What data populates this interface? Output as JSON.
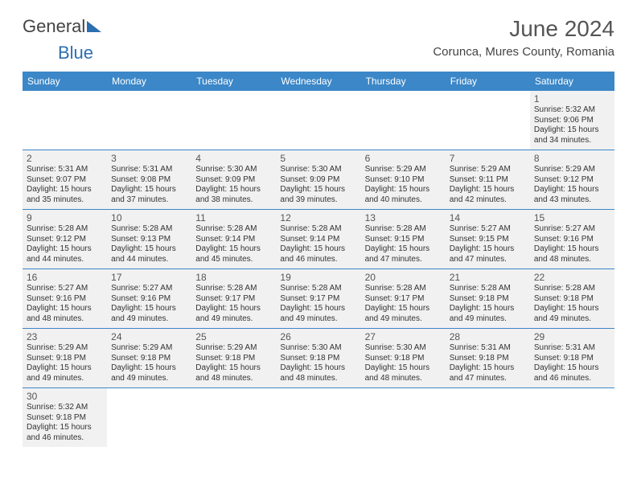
{
  "brand": {
    "part1": "General",
    "part2": "Blue"
  },
  "title": "June 2024",
  "location": "Corunca, Mures County, Romania",
  "colors": {
    "header_bg": "#3b87c8",
    "header_text": "#ffffff",
    "cell_bg": "#f1f1f1",
    "border": "#3b87c8",
    "brand_blue": "#2c6fb0",
    "text": "#333333"
  },
  "day_headers": [
    "Sunday",
    "Monday",
    "Tuesday",
    "Wednesday",
    "Thursday",
    "Friday",
    "Saturday"
  ],
  "weeks": [
    [
      null,
      null,
      null,
      null,
      null,
      null,
      {
        "n": "1",
        "sunrise": "5:32 AM",
        "sunset": "9:06 PM",
        "daylight": "15 hours and 34 minutes."
      }
    ],
    [
      {
        "n": "2",
        "sunrise": "5:31 AM",
        "sunset": "9:07 PM",
        "daylight": "15 hours and 35 minutes."
      },
      {
        "n": "3",
        "sunrise": "5:31 AM",
        "sunset": "9:08 PM",
        "daylight": "15 hours and 37 minutes."
      },
      {
        "n": "4",
        "sunrise": "5:30 AM",
        "sunset": "9:09 PM",
        "daylight": "15 hours and 38 minutes."
      },
      {
        "n": "5",
        "sunrise": "5:30 AM",
        "sunset": "9:09 PM",
        "daylight": "15 hours and 39 minutes."
      },
      {
        "n": "6",
        "sunrise": "5:29 AM",
        "sunset": "9:10 PM",
        "daylight": "15 hours and 40 minutes."
      },
      {
        "n": "7",
        "sunrise": "5:29 AM",
        "sunset": "9:11 PM",
        "daylight": "15 hours and 42 minutes."
      },
      {
        "n": "8",
        "sunrise": "5:29 AM",
        "sunset": "9:12 PM",
        "daylight": "15 hours and 43 minutes."
      }
    ],
    [
      {
        "n": "9",
        "sunrise": "5:28 AM",
        "sunset": "9:12 PM",
        "daylight": "15 hours and 44 minutes."
      },
      {
        "n": "10",
        "sunrise": "5:28 AM",
        "sunset": "9:13 PM",
        "daylight": "15 hours and 44 minutes."
      },
      {
        "n": "11",
        "sunrise": "5:28 AM",
        "sunset": "9:14 PM",
        "daylight": "15 hours and 45 minutes."
      },
      {
        "n": "12",
        "sunrise": "5:28 AM",
        "sunset": "9:14 PM",
        "daylight": "15 hours and 46 minutes."
      },
      {
        "n": "13",
        "sunrise": "5:28 AM",
        "sunset": "9:15 PM",
        "daylight": "15 hours and 47 minutes."
      },
      {
        "n": "14",
        "sunrise": "5:27 AM",
        "sunset": "9:15 PM",
        "daylight": "15 hours and 47 minutes."
      },
      {
        "n": "15",
        "sunrise": "5:27 AM",
        "sunset": "9:16 PM",
        "daylight": "15 hours and 48 minutes."
      }
    ],
    [
      {
        "n": "16",
        "sunrise": "5:27 AM",
        "sunset": "9:16 PM",
        "daylight": "15 hours and 48 minutes."
      },
      {
        "n": "17",
        "sunrise": "5:27 AM",
        "sunset": "9:16 PM",
        "daylight": "15 hours and 49 minutes."
      },
      {
        "n": "18",
        "sunrise": "5:28 AM",
        "sunset": "9:17 PM",
        "daylight": "15 hours and 49 minutes."
      },
      {
        "n": "19",
        "sunrise": "5:28 AM",
        "sunset": "9:17 PM",
        "daylight": "15 hours and 49 minutes."
      },
      {
        "n": "20",
        "sunrise": "5:28 AM",
        "sunset": "9:17 PM",
        "daylight": "15 hours and 49 minutes."
      },
      {
        "n": "21",
        "sunrise": "5:28 AM",
        "sunset": "9:18 PM",
        "daylight": "15 hours and 49 minutes."
      },
      {
        "n": "22",
        "sunrise": "5:28 AM",
        "sunset": "9:18 PM",
        "daylight": "15 hours and 49 minutes."
      }
    ],
    [
      {
        "n": "23",
        "sunrise": "5:29 AM",
        "sunset": "9:18 PM",
        "daylight": "15 hours and 49 minutes."
      },
      {
        "n": "24",
        "sunrise": "5:29 AM",
        "sunset": "9:18 PM",
        "daylight": "15 hours and 49 minutes."
      },
      {
        "n": "25",
        "sunrise": "5:29 AM",
        "sunset": "9:18 PM",
        "daylight": "15 hours and 48 minutes."
      },
      {
        "n": "26",
        "sunrise": "5:30 AM",
        "sunset": "9:18 PM",
        "daylight": "15 hours and 48 minutes."
      },
      {
        "n": "27",
        "sunrise": "5:30 AM",
        "sunset": "9:18 PM",
        "daylight": "15 hours and 48 minutes."
      },
      {
        "n": "28",
        "sunrise": "5:31 AM",
        "sunset": "9:18 PM",
        "daylight": "15 hours and 47 minutes."
      },
      {
        "n": "29",
        "sunrise": "5:31 AM",
        "sunset": "9:18 PM",
        "daylight": "15 hours and 46 minutes."
      }
    ],
    [
      {
        "n": "30",
        "sunrise": "5:32 AM",
        "sunset": "9:18 PM",
        "daylight": "15 hours and 46 minutes."
      },
      null,
      null,
      null,
      null,
      null,
      null
    ]
  ],
  "labels": {
    "sunrise": "Sunrise: ",
    "sunset": "Sunset: ",
    "daylight": "Daylight: "
  }
}
